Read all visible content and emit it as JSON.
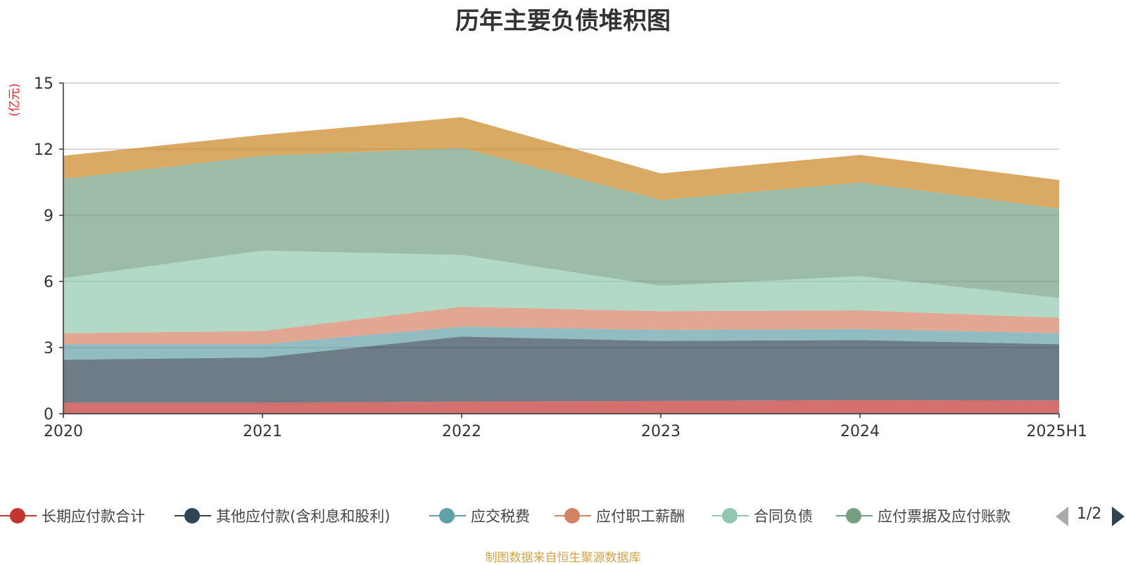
{
  "chart_data": {
    "type": "area",
    "title": "历年主要负债堆积图",
    "ylabel": "(亿元)",
    "xlabel": "",
    "stacked": true,
    "categories": [
      "2020",
      "2021",
      "2022",
      "2023",
      "2024",
      "2025H1"
    ],
    "ylim": [
      0,
      15
    ],
    "yticks": [
      0,
      3,
      6,
      9,
      12,
      15
    ],
    "grid": true,
    "legend_position": "bottom",
    "series": [
      {
        "name": "长期应付款合计",
        "color": "#c23531",
        "values": [
          0.5,
          0.5,
          0.55,
          0.58,
          0.62,
          0.6
        ]
      },
      {
        "name": "其他应付款(含利息和股利)",
        "color": "#2f4554",
        "values": [
          1.95,
          2.05,
          2.95,
          2.72,
          2.72,
          2.55
        ]
      },
      {
        "name": "应交税费",
        "color": "#61a0a8",
        "values": [
          0.7,
          0.6,
          0.45,
          0.5,
          0.5,
          0.5
        ]
      },
      {
        "name": "应付职工薪酬",
        "color": "#d48265",
        "values": [
          0.5,
          0.6,
          0.9,
          0.85,
          0.85,
          0.7
        ]
      },
      {
        "name": "合同负债",
        "color": "#91c7ae",
        "values": [
          2.5,
          3.65,
          2.35,
          1.15,
          1.55,
          0.9
        ]
      },
      {
        "name": "应付票据及应付账款",
        "color": "#749f83",
        "values": [
          4.5,
          4.3,
          4.85,
          3.9,
          4.25,
          4.05
        ]
      },
      {
        "name": "",
        "color": "#ca8622",
        "values": [
          1.05,
          0.95,
          1.4,
          1.2,
          1.25,
          1.3
        ]
      }
    ]
  },
  "legend": {
    "items": [
      "长期应付款合计",
      "其他应付款(含利息和股利)",
      "应交税费",
      "应付职工薪酬",
      "合同负债",
      "应付票据及应付账款"
    ],
    "page": "1/2",
    "prev_icon": "triangle-left-icon",
    "next_icon": "triangle-right-icon"
  },
  "footer": {
    "source": "制图数据来自恒生聚源数据库"
  }
}
